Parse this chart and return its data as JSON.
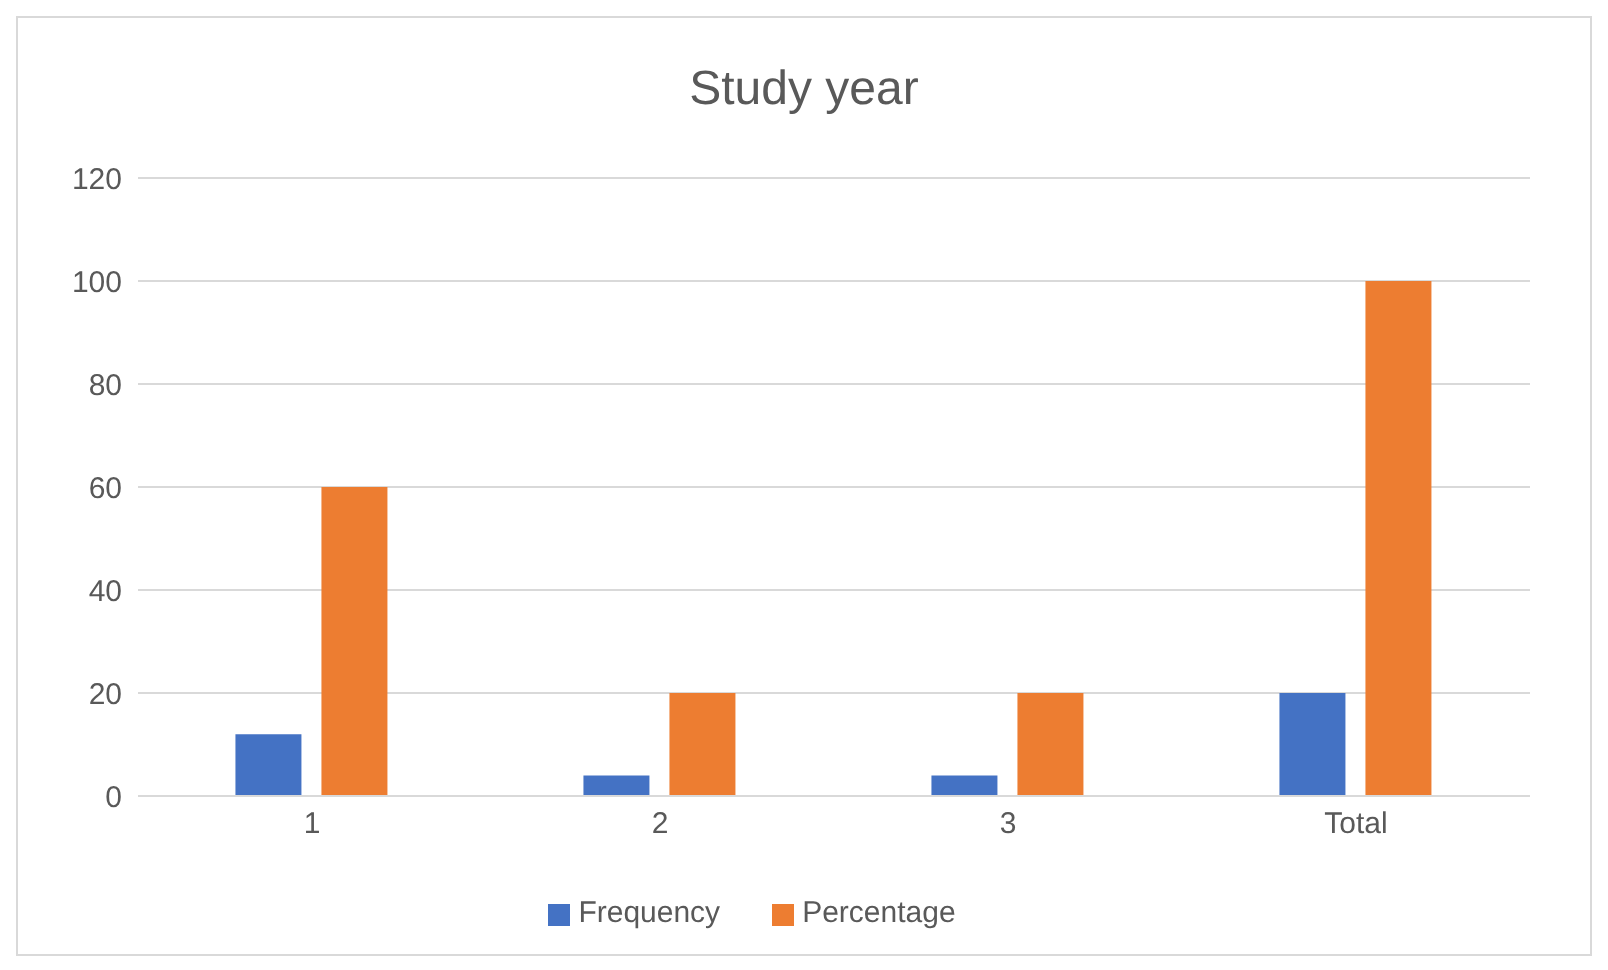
{
  "chart_data": {
    "type": "bar",
    "title": "Study year",
    "categories": [
      "1",
      "2",
      "3",
      "Total"
    ],
    "series": [
      {
        "name": "Frequency",
        "color": "#4472c4",
        "values": [
          12,
          4,
          4,
          20
        ]
      },
      {
        "name": "Percentage",
        "color": "#ed7d31",
        "values": [
          60,
          20,
          20,
          100
        ]
      }
    ],
    "ylim": [
      0,
      120
    ],
    "yticks": [
      0,
      20,
      40,
      60,
      80,
      100,
      120
    ],
    "grid": "y",
    "legend": "bottom"
  }
}
